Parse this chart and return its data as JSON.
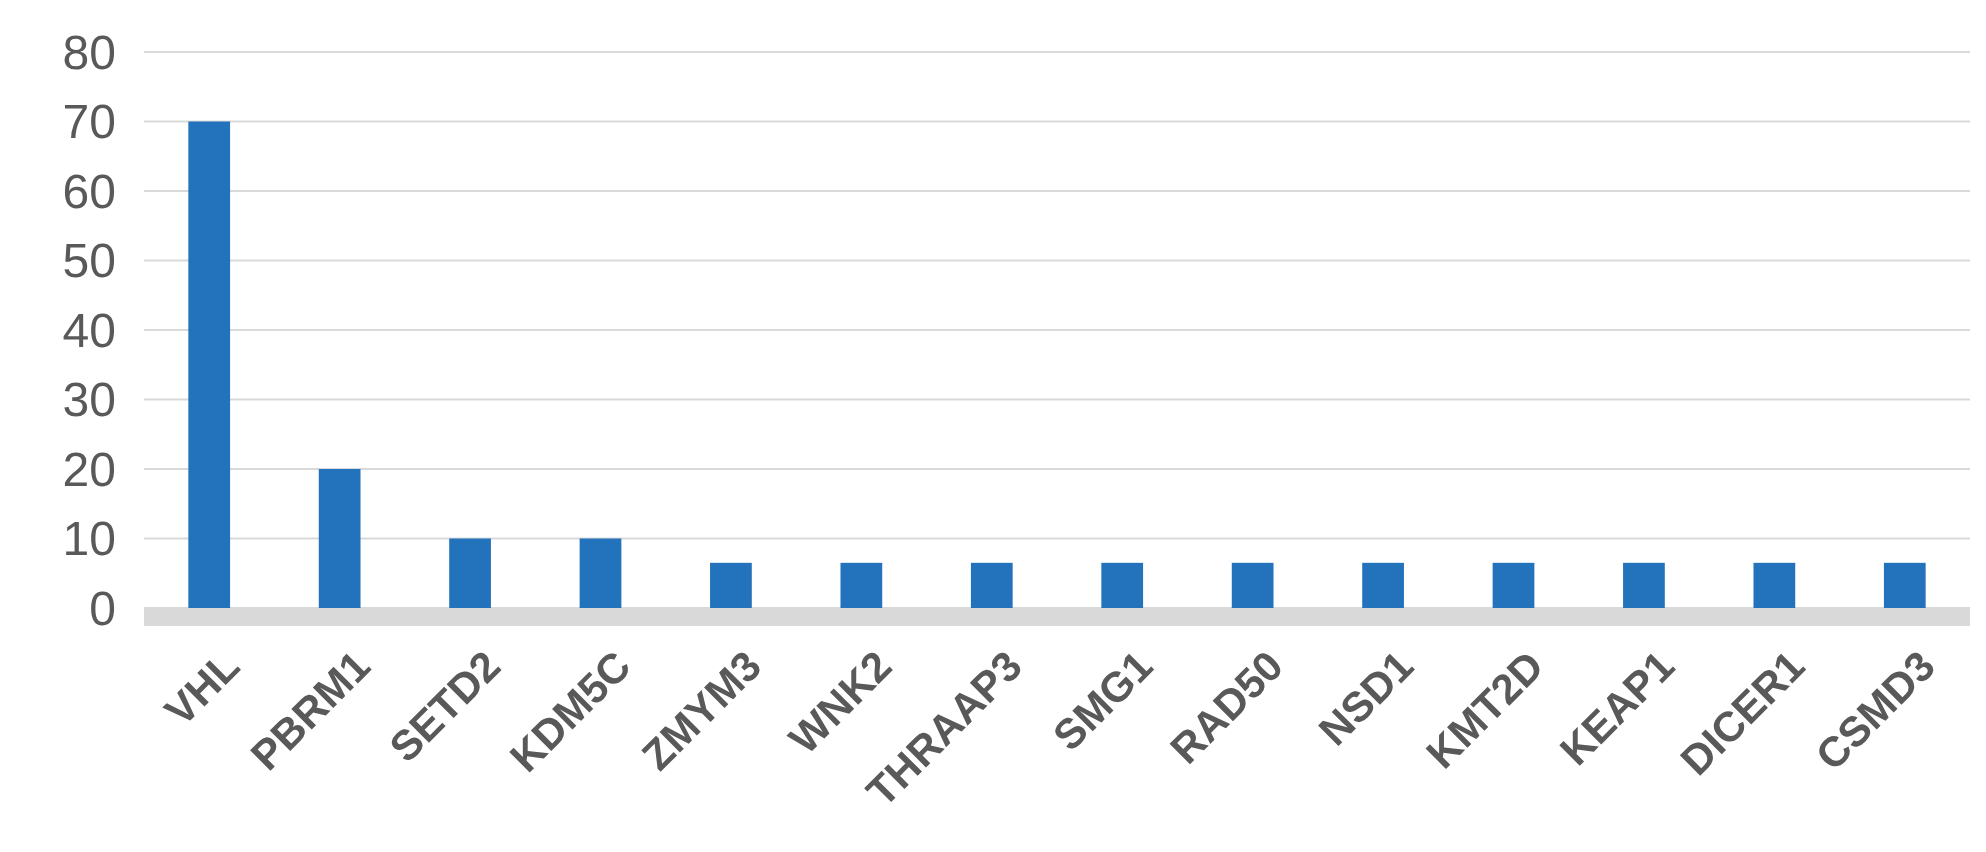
{
  "chart_data": {
    "type": "bar",
    "categories": [
      "VHL",
      "PBRM1",
      "SETD2",
      "KDM5C",
      "ZMYM3",
      "WNK2",
      "THRAAP3",
      "SMG1",
      "RAD50",
      "NSD1",
      "KMT2D",
      "KEAP1",
      "DICER1",
      "CSMD3"
    ],
    "values": [
      70,
      20,
      10,
      10,
      6.5,
      6.5,
      6.5,
      6.5,
      6.5,
      6.5,
      6.5,
      6.5,
      6.5,
      6.5
    ],
    "color": "#2372bc",
    "ylim": [
      0,
      80
    ],
    "yticks": [
      0,
      10,
      20,
      30,
      40,
      50,
      60,
      70,
      80
    ],
    "grid": "y"
  }
}
